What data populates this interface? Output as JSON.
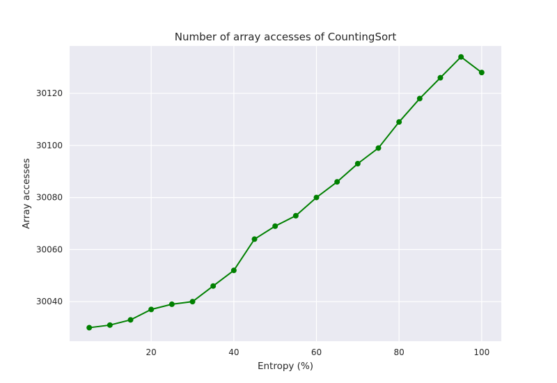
{
  "chart_data": {
    "type": "line",
    "title": "Number of array accesses of CountingSort",
    "xlabel": "Entropy (%)",
    "ylabel": "Array accesses",
    "xlim": [
      0.25,
      104.75
    ],
    "ylim": [
      30024.8,
      30138.2
    ],
    "xticks": [
      20,
      40,
      60,
      80,
      100
    ],
    "yticks": [
      30040,
      30060,
      30080,
      30100,
      30120
    ],
    "grid": true,
    "colors": {
      "background": "#eaeaf2",
      "grid": "#ffffff",
      "series": "#008000"
    },
    "series": [
      {
        "x": [
          5,
          10,
          15,
          20,
          25,
          30,
          35,
          40,
          45,
          50,
          55,
          60,
          65,
          70,
          75,
          80,
          85,
          90,
          95,
          100
        ],
        "y": [
          30030,
          30031,
          30033,
          30037,
          30039,
          30040,
          30046,
          30052,
          30064,
          30069,
          30073,
          30080,
          30086,
          30093,
          30099,
          30109,
          30118,
          30126,
          30134,
          30128
        ]
      }
    ]
  }
}
